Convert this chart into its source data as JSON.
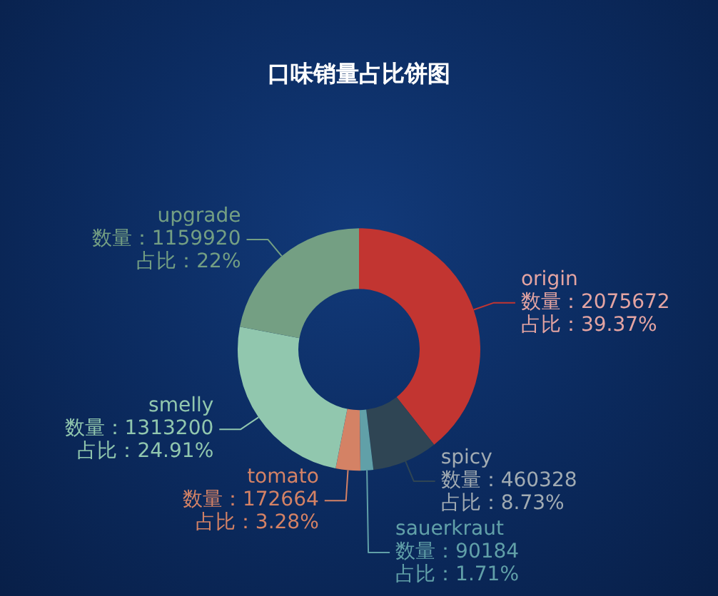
{
  "chart_data": {
    "type": "donut",
    "title": "口味销量占比饼图",
    "categories": [
      "origin",
      "spicy",
      "sauerkraut",
      "tomato",
      "smelly",
      "upgrade"
    ],
    "values": [
      2075672,
      460328,
      90184,
      172664,
      1313200,
      1159920
    ],
    "colors": [
      "#c23531",
      "#2f4554",
      "#61a0a8",
      "#d48265",
      "#91c7ae",
      "#749f83"
    ],
    "value_labels": [
      "数量：2075672\n占比：39.37%",
      "数量：460328\n占比：8.73%",
      "数量：90184\n占比：1.71%",
      "数量：172664\n占比：3.28%",
      "数量：1313200\n占比：24.91%",
      "数量：1159920\n占比：22%"
    ],
    "legend": false
  }
}
